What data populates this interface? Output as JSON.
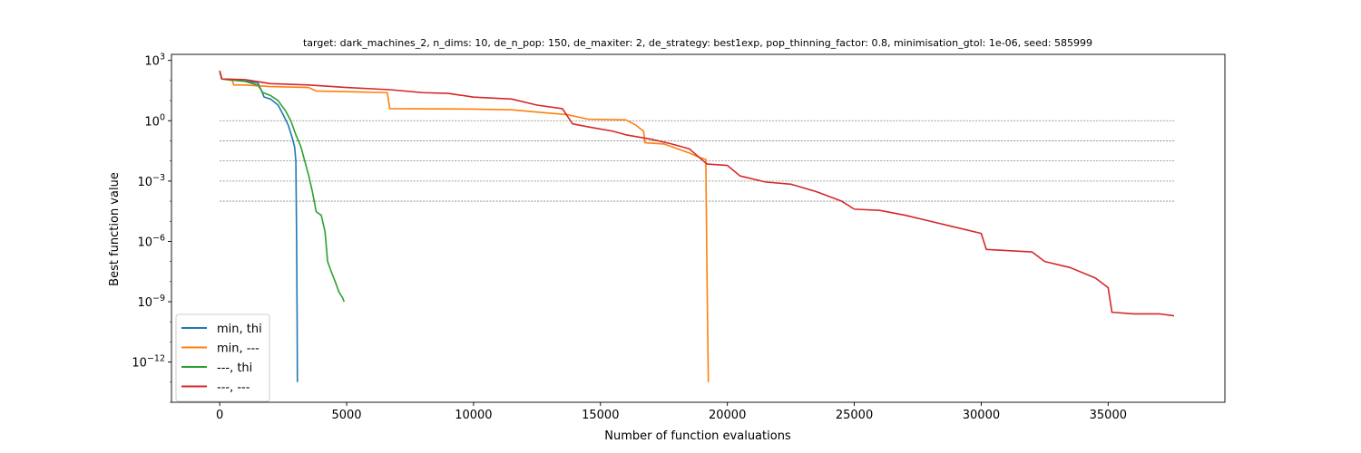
{
  "chart_data": {
    "type": "line",
    "title": "target: dark_machines_2, n_dims: 10, de_n_pop: 150, de_maxiter: 2, de_strategy: best1exp, pop_thinning_factor: 0.8, minimisation_gtol: 1e-06, seed: 585999",
    "xlabel": "Number of function evaluations",
    "ylabel": "Best function value",
    "yscale": "log",
    "xlim": [
      -1900,
      39600
    ],
    "ylim": [
      1e-14,
      2000
    ],
    "xticks": [
      0,
      5000,
      10000,
      15000,
      20000,
      25000,
      30000,
      35000
    ],
    "yticks": [
      {
        "value": 1000,
        "label": "10^3"
      },
      {
        "value": 1,
        "label": "10^0"
      },
      {
        "value": 0.001,
        "label": "10^-3"
      },
      {
        "value": 1e-06,
        "label": "10^-6"
      },
      {
        "value": 1e-09,
        "label": "10^-9"
      },
      {
        "value": 1e-12,
        "label": "10^-12"
      }
    ],
    "reference_lines": {
      "values": [
        1,
        0.1,
        0.01,
        0.001,
        0.0001
      ],
      "x_range": [
        0,
        37600
      ],
      "color": "#808080"
    },
    "legend_position": "lower-left",
    "series": [
      {
        "name": "min, thi",
        "color": "#1f77b4",
        "points": [
          [
            0,
            300
          ],
          [
            80,
            120
          ],
          [
            1500,
            80
          ],
          [
            1650,
            30
          ],
          [
            1750,
            15
          ],
          [
            2000,
            12
          ],
          [
            2300,
            6
          ],
          [
            2500,
            2
          ],
          [
            2700,
            0.6
          ],
          [
            2850,
            0.15
          ],
          [
            2950,
            0.05
          ],
          [
            3000,
            0.01
          ],
          [
            3030,
            1e-06
          ],
          [
            3050,
            1e-10
          ],
          [
            3060,
            1e-13
          ]
        ]
      },
      {
        "name": "min, ---",
        "color": "#ff7f0e",
        "points": [
          [
            0,
            300
          ],
          [
            80,
            120
          ],
          [
            500,
            100
          ],
          [
            550,
            60
          ],
          [
            1000,
            60
          ],
          [
            2000,
            50
          ],
          [
            3500,
            45
          ],
          [
            3800,
            30
          ],
          [
            5000,
            28
          ],
          [
            6600,
            25
          ],
          [
            6700,
            4
          ],
          [
            10000,
            3.8
          ],
          [
            11500,
            3.5
          ],
          [
            12800,
            2.5
          ],
          [
            13700,
            2
          ],
          [
            14500,
            1.2
          ],
          [
            16000,
            1.1
          ],
          [
            16400,
            0.6
          ],
          [
            16700,
            0.3
          ],
          [
            16750,
            0.08
          ],
          [
            17500,
            0.07
          ],
          [
            18500,
            0.025
          ],
          [
            18900,
            0.015
          ],
          [
            19150,
            0.012
          ],
          [
            19200,
            1e-08
          ],
          [
            19250,
            1e-13
          ]
        ]
      },
      {
        "name": "---, thi",
        "color": "#2ca02c",
        "points": [
          [
            0,
            300
          ],
          [
            80,
            120
          ],
          [
            1000,
            90
          ],
          [
            1500,
            60
          ],
          [
            1700,
            25
          ],
          [
            2000,
            18
          ],
          [
            2300,
            10
          ],
          [
            2600,
            3
          ],
          [
            2800,
            1
          ],
          [
            3000,
            0.2
          ],
          [
            3200,
            0.05
          ],
          [
            3350,
            0.01
          ],
          [
            3500,
            0.002
          ],
          [
            3650,
            0.0003
          ],
          [
            3800,
            3e-05
          ],
          [
            4000,
            2e-05
          ],
          [
            4150,
            3e-06
          ],
          [
            4250,
            1e-07
          ],
          [
            4400,
            3e-08
          ],
          [
            4550,
            1e-08
          ],
          [
            4700,
            3e-09
          ],
          [
            4850,
            1.5e-09
          ],
          [
            4900,
            1e-09
          ]
        ]
      },
      {
        "name": "---, ---",
        "color": "#d62728",
        "points": [
          [
            0,
            300
          ],
          [
            80,
            120
          ],
          [
            1000,
            110
          ],
          [
            2000,
            70
          ],
          [
            3500,
            60
          ],
          [
            5000,
            45
          ],
          [
            6700,
            35
          ],
          [
            8000,
            25
          ],
          [
            9000,
            23
          ],
          [
            10000,
            15
          ],
          [
            11500,
            12
          ],
          [
            12500,
            6
          ],
          [
            13500,
            4
          ],
          [
            13900,
            0.7
          ],
          [
            14500,
            0.5
          ],
          [
            15500,
            0.3
          ],
          [
            16000,
            0.2
          ],
          [
            17000,
            0.12
          ],
          [
            17800,
            0.07
          ],
          [
            18500,
            0.04
          ],
          [
            19200,
            0.007
          ],
          [
            20000,
            0.006
          ],
          [
            20500,
            0.0018
          ],
          [
            21500,
            0.0009
          ],
          [
            22500,
            0.0007
          ],
          [
            23500,
            0.0003
          ],
          [
            24500,
            0.0001
          ],
          [
            25000,
            4e-05
          ],
          [
            26000,
            3.5e-05
          ],
          [
            27000,
            2e-05
          ],
          [
            28000,
            1e-05
          ],
          [
            29000,
            5e-06
          ],
          [
            30000,
            2.5e-06
          ],
          [
            30200,
            4e-07
          ],
          [
            31000,
            3.5e-07
          ],
          [
            32000,
            3e-07
          ],
          [
            32500,
            1e-07
          ],
          [
            33500,
            5e-08
          ],
          [
            34500,
            1.5e-08
          ],
          [
            35000,
            5e-09
          ],
          [
            35150,
            3e-10
          ],
          [
            36000,
            2.5e-10
          ],
          [
            37000,
            2.5e-10
          ],
          [
            37600,
            2e-10
          ]
        ]
      }
    ]
  }
}
